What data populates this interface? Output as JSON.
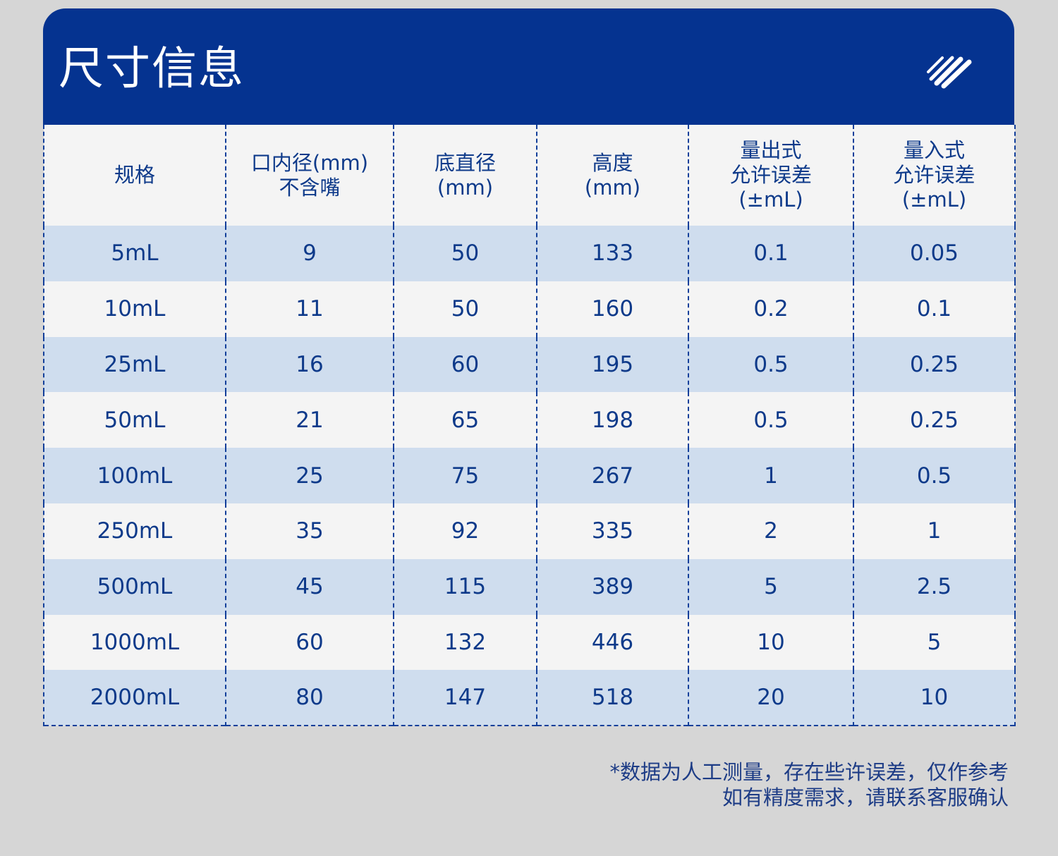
{
  "header": {
    "title": "尺寸信息",
    "icon": "stripes-logo-icon"
  },
  "table": {
    "headers": [
      [
        "规格"
      ],
      [
        "口内径(mm)",
        "不含嘴"
      ],
      [
        "底直径",
        "(mm)"
      ],
      [
        "高度",
        "(mm)"
      ],
      [
        "量出式",
        "允许误差",
        "(±mL)"
      ],
      [
        "量入式",
        "允许误差",
        "(±mL)"
      ]
    ],
    "rows": [
      [
        "5mL",
        "9",
        "50",
        "133",
        "0.1",
        "0.05"
      ],
      [
        "10mL",
        "11",
        "50",
        "160",
        "0.2",
        "0.1"
      ],
      [
        "25mL",
        "16",
        "60",
        "195",
        "0.5",
        "0.25"
      ],
      [
        "50mL",
        "21",
        "65",
        "198",
        "0.5",
        "0.25"
      ],
      [
        "100mL",
        "25",
        "75",
        "267",
        "1",
        "0.5"
      ],
      [
        "250mL",
        "35",
        "92",
        "335",
        "2",
        "1"
      ],
      [
        "500mL",
        "45",
        "115",
        "389",
        "5",
        "2.5"
      ],
      [
        "1000mL",
        "60",
        "132",
        "446",
        "10",
        "5"
      ],
      [
        "2000mL",
        "80",
        "147",
        "518",
        "20",
        "10"
      ]
    ]
  },
  "note": {
    "line1": "*数据为人工测量，存在些许误差，仅作参考",
    "line2": "如有精度需求，请联系客服确认"
  },
  "colors": {
    "brand_blue": "#053390",
    "row_shade": "#cfddee",
    "row_plain": "#f4f4f4",
    "text_blue": "#0e3a8a",
    "page_bg": "#d6d6d6"
  }
}
